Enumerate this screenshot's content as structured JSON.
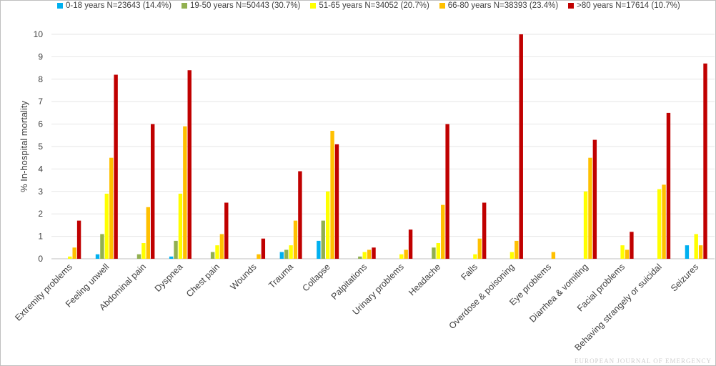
{
  "chart_data": {
    "type": "bar",
    "ylabel": "% In-hospital mortality",
    "xlabel": "",
    "ylim": [
      0,
      10
    ],
    "yticks": [
      0,
      1,
      2,
      3,
      4,
      5,
      6,
      7,
      8,
      9,
      10
    ],
    "grid": true,
    "legend_position": "top",
    "categories": [
      "Extremity problems",
      "Feeling unwell",
      "Abdominal pain",
      "Dyspnea",
      "Chest pain",
      "Wounds",
      "Trauma",
      "Collapse",
      "Palpitations",
      "Urinary problems",
      "Headache",
      "Falls",
      "Overdose & poisoning",
      "Eye problems",
      "Diarrhea & vomiting",
      "Facial problems",
      "Behaving strangely or suicidal",
      "Seizures"
    ],
    "series": [
      {
        "name": "0-18 years N=23643 (14.4%)",
        "color": "#00b0f0",
        "values": [
          0,
          0.2,
          0,
          0.1,
          0,
          0,
          0.3,
          0.8,
          0,
          0,
          0,
          0,
          0,
          0,
          0,
          0,
          0,
          0.6
        ]
      },
      {
        "name": "19-50 years N=50443 (30.7%)",
        "color": "#92b050",
        "values": [
          0,
          1.1,
          0.2,
          0.8,
          0.3,
          0,
          0.4,
          1.7,
          0.1,
          0,
          0.5,
          0,
          0,
          0,
          0,
          0,
          0,
          0
        ]
      },
      {
        "name": "51-65 years N=34052 (20.7%)",
        "color": "#ffff00",
        "values": [
          0.1,
          2.9,
          0.7,
          2.9,
          0.6,
          0,
          0.6,
          3.0,
          0.3,
          0.2,
          0.7,
          0.2,
          0.3,
          0,
          3.0,
          0.6,
          3.1,
          1.1
        ]
      },
      {
        "name": "66-80 years N=38393 (23.4%)",
        "color": "#ffc000",
        "values": [
          0.5,
          4.5,
          2.3,
          5.9,
          1.1,
          0.2,
          1.7,
          5.7,
          0.4,
          0.4,
          2.4,
          0.9,
          0.8,
          0.3,
          4.5,
          0.4,
          3.3,
          0.6
        ]
      },
      {
        "name": ">80 years N=17614 (10.7%)",
        "color": "#c00000",
        "values": [
          1.7,
          8.2,
          6.0,
          8.4,
          2.5,
          0.9,
          3.9,
          5.1,
          0.5,
          1.3,
          6.0,
          2.5,
          10.0,
          0,
          5.3,
          1.2,
          6.5,
          8.7
        ]
      }
    ]
  },
  "watermark": "EUROPEAN JOURNAL OF EMERGENCY"
}
